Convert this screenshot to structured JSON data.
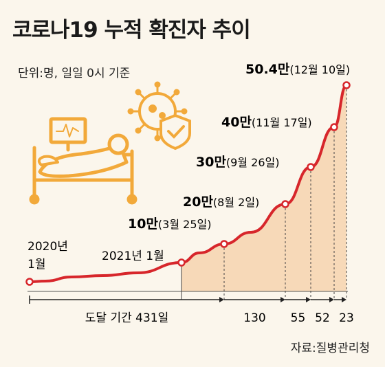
{
  "title": "코로나19 누적 확진자 추이",
  "unit_note": "단위:명, 일일 0시 기준",
  "source": "자료:질병관리청",
  "colors": {
    "line": "#d7262b",
    "area": "#f7d9b8",
    "background": "#fbf6ec",
    "illustration": "#f2a93a"
  },
  "icons": [
    "hospital-bed-patient-icon",
    "coronavirus-shield-icon"
  ],
  "chart_data": {
    "type": "area",
    "start_labels": [
      "2020년",
      "1월"
    ],
    "jan2021_label": "2021년 1월",
    "milestones": [
      {
        "value_label": "10만",
        "date_label": "(3월 25일)"
      },
      {
        "value_label": "20만",
        "date_label": "(8월 2일)"
      },
      {
        "value_label": "30만",
        "date_label": "(9월 26일)"
      },
      {
        "value_label": "40만",
        "date_label": "(11월 17일)"
      },
      {
        "value_label": "50.4만",
        "date_label": "(12월 10일)"
      }
    ],
    "intervals": [
      {
        "label": "도달 기간 431일",
        "days": 431
      },
      {
        "label": "130",
        "days": 130
      },
      {
        "label": "55",
        "days": 55
      },
      {
        "label": "52",
        "days": 52
      },
      {
        "label": "23",
        "days": 23
      }
    ]
  }
}
